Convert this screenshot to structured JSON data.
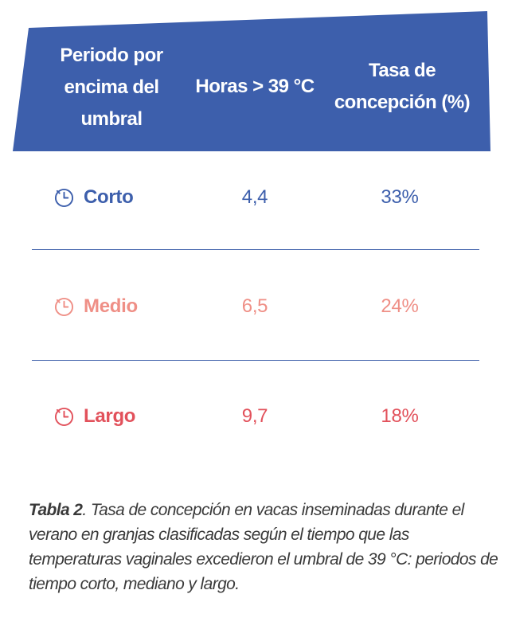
{
  "colors": {
    "header_bg": "#3d5fac",
    "header_text": "#ffffff",
    "divider": "#3a5da8",
    "corto": "#3d5fac",
    "medio": "#ef8f86",
    "largo": "#e2515b",
    "caption_text": "#3a3a3a"
  },
  "table": {
    "headers": [
      "Periodo por encima del umbral",
      "Horas > 39 °C",
      "Tasa de concepción (%)"
    ],
    "header_lines": {
      "col1": [
        "Periodo por",
        "encima del",
        "umbral"
      ],
      "col2": [
        "Horas > 39 °C"
      ],
      "col3": [
        "Tasa de",
        "concepción (%)"
      ]
    },
    "rows": [
      {
        "icon": "clock-icon",
        "label": "Corto",
        "hours": "4,4",
        "rate": "33%",
        "color": "#3d5fac"
      },
      {
        "icon": "clock-icon",
        "label": "Medio",
        "hours": "6,5",
        "rate": "24%",
        "color": "#ef8f86"
      },
      {
        "icon": "clock-icon",
        "label": "Largo",
        "hours": "9,7",
        "rate": "18%",
        "color": "#e2515b"
      }
    ]
  },
  "caption": {
    "label": "Tabla 2",
    "text": ". Tasa de concepción en vacas inseminadas durante el verano en granjas clasificadas según el tiempo que las temperaturas vaginales excedieron el umbral de 39 °C: periodos de tiempo corto, mediano y largo."
  }
}
